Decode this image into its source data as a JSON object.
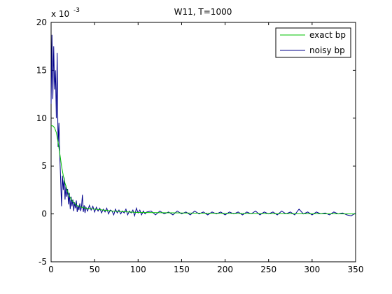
{
  "chart_data": {
    "type": "line",
    "title": "W11, T=1000",
    "xlabel": "",
    "ylabel": "",
    "xlim": [
      0,
      350
    ],
    "ylim": [
      -5,
      20
    ],
    "x_ticks": [
      "0",
      "50",
      "100",
      "150",
      "200",
      "250",
      "300",
      "350"
    ],
    "y_ticks": [
      "-5",
      "0",
      "5",
      "10",
      "15",
      "20"
    ],
    "x_tick_values": [
      0,
      50,
      100,
      150,
      200,
      250,
      300,
      350
    ],
    "y_tick_values": [
      -5,
      0,
      5,
      10,
      15,
      20
    ],
    "y_scale_multiplier": {
      "base": "x 10",
      "exponent": "-3"
    },
    "grid": false,
    "legend_position": "top-right",
    "series": [
      {
        "name": "exact bp",
        "color": "#00c000",
        "points": [
          [
            0,
            9.2
          ],
          [
            2,
            9.2
          ],
          [
            4,
            9.0
          ],
          [
            6,
            8.5
          ],
          [
            8,
            7.5
          ],
          [
            10,
            6.3
          ],
          [
            12,
            5.0
          ],
          [
            14,
            4.0
          ],
          [
            16,
            3.2
          ],
          [
            18,
            2.6
          ],
          [
            20,
            2.1
          ],
          [
            22,
            1.7
          ],
          [
            24,
            1.4
          ],
          [
            26,
            1.2
          ],
          [
            28,
            1.0
          ],
          [
            30,
            0.85
          ],
          [
            35,
            0.7
          ],
          [
            40,
            0.6
          ],
          [
            45,
            0.55
          ],
          [
            50,
            0.5
          ],
          [
            60,
            0.4
          ],
          [
            70,
            0.3
          ],
          [
            80,
            0.25
          ],
          [
            90,
            0.2
          ],
          [
            100,
            0.15
          ],
          [
            150,
            0.1
          ],
          [
            200,
            0.05
          ],
          [
            250,
            0.03
          ],
          [
            300,
            0.02
          ],
          [
            350,
            0.0
          ]
        ]
      },
      {
        "name": "noisy bp",
        "color": "#00008b",
        "points": [
          [
            0,
            11.5
          ],
          [
            1,
            18.7
          ],
          [
            2,
            12.0
          ],
          [
            3,
            17.5
          ],
          [
            4,
            13.0
          ],
          [
            5,
            15.0
          ],
          [
            6,
            10.0
          ],
          [
            7,
            16.8
          ],
          [
            8,
            7.0
          ],
          [
            9,
            9.5
          ],
          [
            10,
            6.0
          ],
          [
            11,
            3.5
          ],
          [
            12,
            0.8
          ],
          [
            13,
            4.0
          ],
          [
            14,
            2.5
          ],
          [
            15,
            3.8
          ],
          [
            16,
            1.5
          ],
          [
            17,
            3.0
          ],
          [
            18,
            1.8
          ],
          [
            19,
            2.6
          ],
          [
            20,
            1.0
          ],
          [
            21,
            2.2
          ],
          [
            22,
            0.5
          ],
          [
            23,
            1.8
          ],
          [
            24,
            0.8
          ],
          [
            25,
            1.5
          ],
          [
            26,
            0.3
          ],
          [
            27,
            1.2
          ],
          [
            28,
            0.6
          ],
          [
            29,
            1.4
          ],
          [
            30,
            0.2
          ],
          [
            31,
            0.9
          ],
          [
            32,
            0.4
          ],
          [
            33,
            1.1
          ],
          [
            34,
            0.3
          ],
          [
            35,
            0.8
          ],
          [
            36,
            2.0
          ],
          [
            37,
            0.2
          ],
          [
            38,
            0.9
          ],
          [
            39,
            0.1
          ],
          [
            40,
            0.7
          ],
          [
            42,
            0.3
          ],
          [
            44,
            0.9
          ],
          [
            46,
            0.4
          ],
          [
            48,
            0.8
          ],
          [
            50,
            0.2
          ],
          [
            52,
            0.7
          ],
          [
            54,
            0.3
          ],
          [
            56,
            0.6
          ],
          [
            58,
            0.1
          ],
          [
            60,
            0.5
          ],
          [
            62,
            0.2
          ],
          [
            64,
            0.6
          ],
          [
            66,
            0.0
          ],
          [
            68,
            0.4
          ],
          [
            70,
            0.3
          ],
          [
            72,
            -0.1
          ],
          [
            74,
            0.5
          ],
          [
            76,
            0.1
          ],
          [
            78,
            0.4
          ],
          [
            80,
            0.0
          ],
          [
            82,
            0.3
          ],
          [
            84,
            0.1
          ],
          [
            86,
            0.5
          ],
          [
            88,
            -0.1
          ],
          [
            90,
            0.3
          ],
          [
            92,
            0.1
          ],
          [
            94,
            0.4
          ],
          [
            96,
            -0.2
          ],
          [
            98,
            0.6
          ],
          [
            100,
            0.1
          ],
          [
            102,
            0.4
          ],
          [
            104,
            -0.1
          ],
          [
            106,
            0.3
          ],
          [
            108,
            0.0
          ],
          [
            110,
            0.2
          ],
          [
            115,
            0.3
          ],
          [
            120,
            -0.1
          ],
          [
            125,
            0.3
          ],
          [
            130,
            0.0
          ],
          [
            135,
            0.2
          ],
          [
            140,
            -0.1
          ],
          [
            145,
            0.3
          ],
          [
            150,
            0.0
          ],
          [
            155,
            0.2
          ],
          [
            160,
            -0.1
          ],
          [
            165,
            0.3
          ],
          [
            170,
            0.0
          ],
          [
            175,
            0.2
          ],
          [
            180,
            -0.1
          ],
          [
            185,
            0.2
          ],
          [
            190,
            0.0
          ],
          [
            195,
            0.2
          ],
          [
            200,
            -0.1
          ],
          [
            205,
            0.2
          ],
          [
            210,
            0.0
          ],
          [
            215,
            0.2
          ],
          [
            220,
            -0.1
          ],
          [
            225,
            0.2
          ],
          [
            230,
            0.0
          ],
          [
            235,
            0.3
          ],
          [
            240,
            -0.1
          ],
          [
            245,
            0.2
          ],
          [
            250,
            0.0
          ],
          [
            255,
            0.2
          ],
          [
            260,
            -0.1
          ],
          [
            265,
            0.3
          ],
          [
            270,
            0.0
          ],
          [
            275,
            0.2
          ],
          [
            280,
            -0.1
          ],
          [
            285,
            0.5
          ],
          [
            290,
            0.0
          ],
          [
            295,
            0.2
          ],
          [
            300,
            -0.1
          ],
          [
            305,
            0.2
          ],
          [
            310,
            0.0
          ],
          [
            315,
            0.1
          ],
          [
            320,
            -0.1
          ],
          [
            325,
            0.2
          ],
          [
            330,
            0.0
          ],
          [
            335,
            0.1
          ],
          [
            340,
            -0.1
          ],
          [
            345,
            -0.2
          ],
          [
            350,
            0.1
          ]
        ]
      }
    ]
  }
}
